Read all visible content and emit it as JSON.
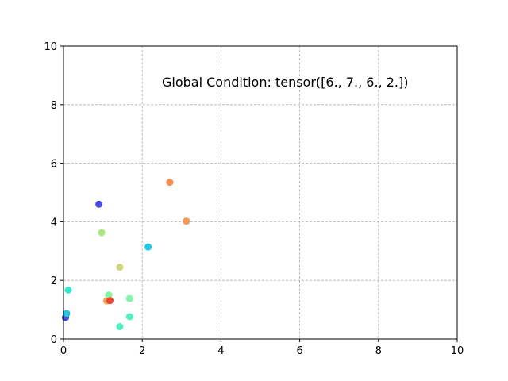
{
  "chart_data": {
    "type": "scatter",
    "annotation": "Global Condition: tensor([6., 7., 6., 2.])",
    "xlim": [
      0,
      10
    ],
    "ylim": [
      0,
      10
    ],
    "x_ticks": [
      0,
      2,
      4,
      6,
      8,
      10
    ],
    "y_ticks": [
      0,
      2,
      4,
      6,
      8,
      10
    ],
    "grid": true,
    "points": [
      {
        "x": 0.05,
        "y": 0.73,
        "color": "#3f49e0"
      },
      {
        "x": 0.08,
        "y": 0.87,
        "color": "#20c4e2"
      },
      {
        "x": 0.12,
        "y": 1.67,
        "color": "#2fe8cf"
      },
      {
        "x": 0.9,
        "y": 4.6,
        "color": "#4b4ee6"
      },
      {
        "x": 0.97,
        "y": 3.63,
        "color": "#a9e87a"
      },
      {
        "x": 1.1,
        "y": 1.3,
        "color": "#f99f4f"
      },
      {
        "x": 1.15,
        "y": 1.5,
        "color": "#84f6a0"
      },
      {
        "x": 1.18,
        "y": 1.31,
        "color": "#f2462a"
      },
      {
        "x": 1.43,
        "y": 2.45,
        "color": "#d0d67a"
      },
      {
        "x": 1.43,
        "y": 0.42,
        "color": "#4ef2c2"
      },
      {
        "x": 1.68,
        "y": 1.38,
        "color": "#80f6a6"
      },
      {
        "x": 1.68,
        "y": 0.76,
        "color": "#4ef2c2"
      },
      {
        "x": 2.15,
        "y": 3.14,
        "color": "#1ccbe6"
      },
      {
        "x": 2.7,
        "y": 5.35,
        "color": "#fb8f52"
      },
      {
        "x": 3.12,
        "y": 4.02,
        "color": "#f9984f"
      }
    ]
  }
}
